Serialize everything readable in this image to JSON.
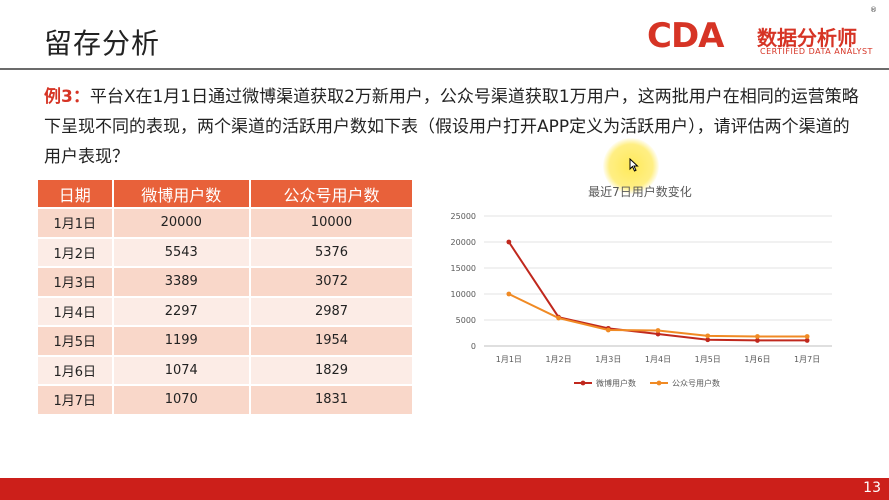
{
  "header": {
    "title": "留存分析",
    "logo": {
      "main": "CDA",
      "cn": "数据分析师",
      "en": "CERTIFIED DATA ANALYST",
      "reg": "®"
    }
  },
  "intro": {
    "lead": "例3：",
    "text": "平台X在1月1日通过微博渠道获取2万新用户，公众号渠道获取1万用户，这两批用户在相同的运营策略下呈现不同的表现，两个渠道的活跃用户数如下表（假设用户打开APP定义为活跃用户），请评估两个渠道的用户表现？"
  },
  "table": {
    "headers": [
      "日期",
      "微博用户数",
      "公众号用户数"
    ],
    "rows": [
      [
        "1月1日",
        "20000",
        "10000"
      ],
      [
        "1月2日",
        "5543",
        "5376"
      ],
      [
        "1月3日",
        "3389",
        "3072"
      ],
      [
        "1月4日",
        "2297",
        "2987"
      ],
      [
        "1月5日",
        "1199",
        "1954"
      ],
      [
        "1月6日",
        "1074",
        "1829"
      ],
      [
        "1月7日",
        "1070",
        "1831"
      ]
    ]
  },
  "chart_data": {
    "type": "line",
    "title": "最近7日用户数变化",
    "categories": [
      "1月1日",
      "1月2日",
      "1月3日",
      "1月4日",
      "1月5日",
      "1月6日",
      "1月7日"
    ],
    "series": [
      {
        "name": "微博用户数",
        "values": [
          20000,
          5543,
          3389,
          2297,
          1199,
          1074,
          1070
        ],
        "color": "#c0281d"
      },
      {
        "name": "公众号用户数",
        "values": [
          10000,
          5376,
          3072,
          2987,
          1954,
          1829,
          1831
        ],
        "color": "#f08a24"
      }
    ],
    "ylim": [
      0,
      25000
    ],
    "yticks": [
      0,
      5000,
      10000,
      15000,
      20000,
      25000
    ],
    "grid": true,
    "legend": "bottom"
  },
  "footer": {
    "page": "13"
  },
  "colors": {
    "accent": "#d63425",
    "header_row": "#e8613a",
    "bar": "#cc1f1a"
  }
}
